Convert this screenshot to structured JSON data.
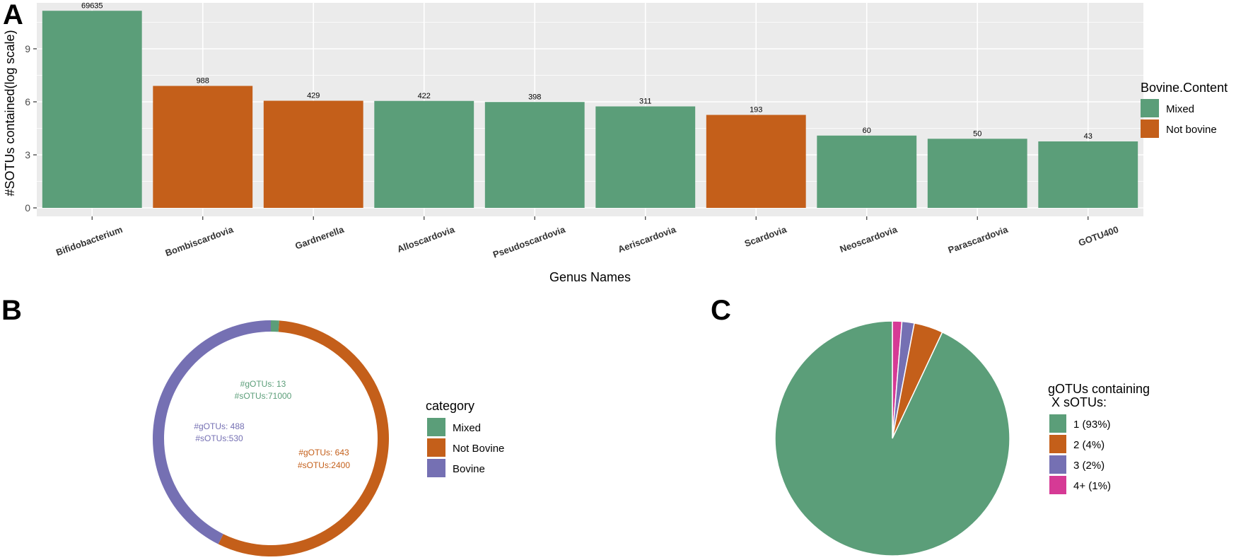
{
  "colors": {
    "mixed": "#5b9e79",
    "not_bovine": "#c45f1a",
    "bovine": "#7570b3",
    "pink": "#d63a95",
    "panel_bg": "#ebebeb",
    "grid": "#ffffff"
  },
  "panels": {
    "a": "A",
    "b": "B",
    "c": "C"
  },
  "chart_data": [
    {
      "type": "bar",
      "title": "",
      "xlabel": "Genus Names",
      "ylabel": "#SOTUs contained(log scale)",
      "ylim": [
        0,
        11.6
      ],
      "yticks": [
        "0",
        "3",
        "6",
        "9"
      ],
      "categories": [
        "Bifidobacterium",
        "Bombiscardovia",
        "Gardnerella",
        "Alloscardovia",
        "Pseudoscardovia",
        "Aeriscardovia",
        "Scardovia",
        "Neoscardovia",
        "Parascardovia",
        "GOTU400"
      ],
      "counts": [
        "69635",
        "988",
        "429",
        "422",
        "398",
        "311",
        "193",
        "60",
        "50",
        "43"
      ],
      "values": [
        11.15,
        6.9,
        6.06,
        6.05,
        5.99,
        5.74,
        5.26,
        4.09,
        3.91,
        3.76
      ],
      "groups": [
        "mixed",
        "not_bovine",
        "not_bovine",
        "mixed",
        "mixed",
        "mixed",
        "not_bovine",
        "mixed",
        "mixed",
        "mixed"
      ],
      "legend": {
        "title": "Bovine.Content",
        "entries": [
          {
            "key": "mixed",
            "label": "Mixed"
          },
          {
            "key": "not_bovine",
            "label": "Not bovine"
          }
        ]
      }
    },
    {
      "type": "pie",
      "style": "donut",
      "slices": [
        {
          "key": "mixed",
          "label": "Mixed",
          "value": 13,
          "gotus_text": "#gOTUs: 13",
          "sotus_text": "#sOTUs:71000"
        },
        {
          "key": "not_bovine",
          "label": "Not Bovine",
          "value": 643,
          "gotus_text": "#gOTUs: 643",
          "sotus_text": "#sOTUs:2400"
        },
        {
          "key": "bovine",
          "label": "Bovine",
          "value": 488,
          "gotus_text": "#gOTUs: 488",
          "sotus_text": "#sOTUs:530"
        }
      ],
      "legend": {
        "title": "category",
        "entries": [
          {
            "key": "mixed",
            "label": "Mixed"
          },
          {
            "key": "not_bovine",
            "label": "Not Bovine"
          },
          {
            "key": "bovine",
            "label": "Bovine"
          }
        ]
      }
    },
    {
      "type": "pie",
      "slices": [
        {
          "key": "mixed",
          "label": "1 (93%)",
          "value": 93
        },
        {
          "key": "not_bovine",
          "label": "2 (4%)",
          "value": 4
        },
        {
          "key": "bovine",
          "label": "3 (2%)",
          "value": 1.7
        },
        {
          "key": "pink",
          "label": "4+ (1%)",
          "value": 1.3
        }
      ],
      "legend": {
        "title_line1": "gOTUs containing",
        "title_line2": " X sOTUs:"
      }
    }
  ]
}
